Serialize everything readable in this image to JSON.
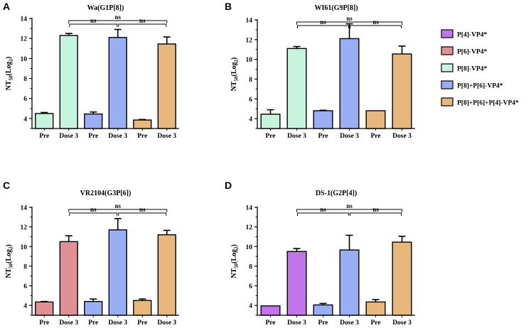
{
  "figure": {
    "ylabel_main": "NT",
    "ylabel_sub": "50",
    "ylabel_tail": "(Log",
    "ylabel_sub2": "2",
    "ylabel_end": ")"
  },
  "legend": {
    "entries": [
      {
        "label": "P[4]-VP4*",
        "color": "#c174ec"
      },
      {
        "label": "P[6]-VP4*",
        "color": "#e19193"
      },
      {
        "label": "P[8]-VP4*",
        "color": "#c5f5de"
      },
      {
        "label": "P[8]+P[6]-VP4*",
        "color": "#9aaef4"
      },
      {
        "label": "P[8]+P[6]+P[4]-VP4*",
        "color": "#e8b77b"
      }
    ]
  },
  "chart_data": [
    {
      "type": "bar",
      "letter": "A",
      "title": "Wa(G1P[8])",
      "ylabel": "NT50(Log2)",
      "ylim": [
        3,
        14
      ],
      "yticks": [
        "4",
        "6",
        "8",
        "10",
        "12",
        "14"
      ],
      "categories": [
        "Pre",
        "Dose 3",
        "Pre",
        "Dose 3",
        "Pre",
        "Dose 3"
      ],
      "values": [
        4.5,
        12.3,
        4.45,
        12.1,
        3.85,
        11.45
      ],
      "errors": [
        0.1,
        0.2,
        0.2,
        0.8,
        0.05,
        0.7
      ],
      "colors": [
        "#c5f5de",
        "#c5f5de",
        "#9aaef4",
        "#9aaef4",
        "#e8b77b",
        "#e8b77b"
      ],
      "significance": [
        "ns",
        "ns",
        "ns"
      ]
    },
    {
      "type": "bar",
      "letter": "B",
      "title": "WI61(G9P[8])",
      "ylabel": "NT50(Log2)",
      "ylim": [
        3,
        14
      ],
      "yticks": [
        "4",
        "6",
        "8",
        "10",
        "12",
        "14"
      ],
      "categories": [
        "Pre",
        "Dose 3",
        "Pre",
        "Dose 3",
        "Pre",
        "Dose 3"
      ],
      "values": [
        4.45,
        11.1,
        4.8,
        12.1,
        4.8,
        10.55
      ],
      "errors": [
        0.45,
        0.2,
        0.05,
        1.5,
        0.0,
        0.8
      ],
      "colors": [
        "#c5f5de",
        "#c5f5de",
        "#9aaef4",
        "#9aaef4",
        "#e8b77b",
        "#e8b77b"
      ],
      "significance": [
        "ns",
        "ns",
        "ns"
      ]
    },
    {
      "type": "bar",
      "letter": "C",
      "title": "VR2104(G3P[6])",
      "ylabel": "NT50(Log2)",
      "ylim": [
        3,
        14
      ],
      "yticks": [
        "4",
        "6",
        "8",
        "10",
        "12",
        "14"
      ],
      "categories": [
        "Pre",
        "Dose 3",
        "Pre",
        "Dose 3",
        "Pre",
        "Dose 3"
      ],
      "values": [
        4.35,
        10.5,
        4.4,
        11.7,
        4.5,
        11.2
      ],
      "errors": [
        0.05,
        0.6,
        0.25,
        1.15,
        0.15,
        0.45
      ],
      "colors": [
        "#e19193",
        "#e19193",
        "#9aaef4",
        "#9aaef4",
        "#e8b77b",
        "#e8b77b"
      ],
      "significance": [
        "ns",
        "ns",
        "ns"
      ]
    },
    {
      "type": "bar",
      "letter": "D",
      "title": "DS-1(G2P[4])",
      "ylabel": "NT50(Log2)",
      "ylim": [
        3,
        14
      ],
      "yticks": [
        "4",
        "6",
        "8",
        "10",
        "12",
        "14"
      ],
      "categories": [
        "Pre",
        "Dose 3",
        "Pre",
        "Dose 3",
        "Pre",
        "Dose 3"
      ],
      "values": [
        3.95,
        9.5,
        4.05,
        9.65,
        4.35,
        10.45
      ],
      "errors": [
        0.0,
        0.3,
        0.15,
        1.5,
        0.25,
        0.6
      ],
      "colors": [
        "#c174ec",
        "#c174ec",
        "#9aaef4",
        "#9aaef4",
        "#e8b77b",
        "#e8b77b"
      ],
      "significance": [
        "ns",
        "ns",
        "ns"
      ]
    }
  ]
}
